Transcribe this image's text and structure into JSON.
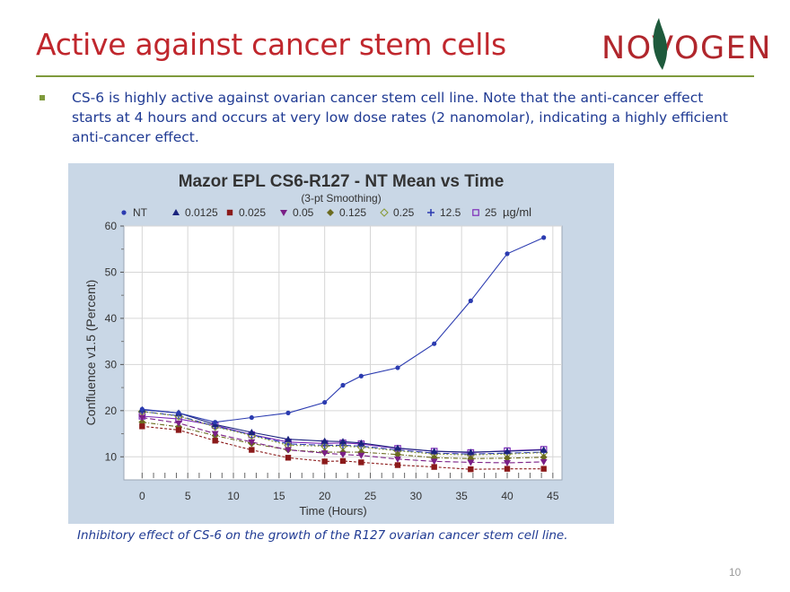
{
  "slide": {
    "title": "Active against cancer stem cells",
    "logo_text": "NOVOGEN",
    "bullet": "CS-6 is highly active against ovarian cancer stem cell line. Note that the anti-cancer effect starts at 4 hours and occurs at very low dose rates (2 nanomolar), indicating a highly efficient anti-cancer effect.",
    "caption": "Inhibitory effect of CS-6 on the growth of the R127 ovarian cancer stem cell line.",
    "page_number": "10",
    "colors": {
      "title": "#c0272d",
      "rule": "#7f9a3c",
      "text": "#1f3a93",
      "logo_leaf": "#1e5a3c"
    }
  },
  "chart_data": {
    "type": "line",
    "title": "Mazor EPL CS6-R127 - NT Mean vs Time",
    "subtitle": "(3-pt Smoothing)",
    "xlabel": "Time (Hours)",
    "ylabel": "Confluence v1.5 (Percent)",
    "unit_label": "µg/ml",
    "xlim": [
      -2,
      46
    ],
    "ylim": [
      5,
      60
    ],
    "x_ticks": [
      "0",
      "5",
      "10",
      "15",
      "20",
      "25",
      "30",
      "35",
      "40",
      "45"
    ],
    "y_ticks": [
      "10",
      "20",
      "30",
      "40",
      "50",
      "60"
    ],
    "grid": true,
    "legend_position": "top",
    "x": [
      0,
      4,
      8,
      12,
      16,
      20,
      22,
      24,
      28,
      32,
      36,
      40,
      44
    ],
    "series": [
      {
        "name": "NT",
        "marker": "circle",
        "color": "#2b3bb0",
        "dash": "",
        "values": [
          20.3,
          19.5,
          17.5,
          18.5,
          19.5,
          21.8,
          25.5,
          27.5,
          29.3,
          34.5,
          43.8,
          54.0,
          57.5
        ]
      },
      {
        "name": "0.0125",
        "marker": "triangle-up",
        "color": "#1a237e",
        "dash": "",
        "values": [
          20.2,
          19.5,
          17.0,
          15.3,
          13.8,
          13.4,
          13.3,
          13.0,
          11.9,
          11.2,
          11.0,
          11.2,
          11.5
        ]
      },
      {
        "name": "0.025",
        "marker": "square",
        "color": "#8b1a1a",
        "dash": "3,2",
        "values": [
          16.6,
          15.8,
          13.5,
          11.5,
          9.8,
          9.0,
          9.1,
          8.8,
          8.2,
          7.8,
          7.3,
          7.4,
          7.4
        ]
      },
      {
        "name": "0.05",
        "marker": "triangle-down",
        "color": "#7a1f86",
        "dash": "6,3",
        "values": [
          18.5,
          17.3,
          15.0,
          13.2,
          11.5,
          10.8,
          10.5,
          10.3,
          9.5,
          9.0,
          8.8,
          8.7,
          8.9
        ]
      },
      {
        "name": "0.125",
        "marker": "diamond",
        "color": "#6b6b1f",
        "dash": "5,2,1,2",
        "values": [
          17.5,
          16.5,
          14.6,
          12.9,
          11.5,
          11.0,
          11.0,
          11.0,
          10.5,
          9.8,
          9.6,
          9.7,
          9.9
        ]
      },
      {
        "name": "0.25",
        "marker": "diamond-open",
        "color": "#8a9a3a",
        "dash": "2,2",
        "values": [
          19.8,
          18.8,
          16.5,
          14.6,
          12.5,
          12.3,
          12.3,
          12.1,
          11.3,
          10.6,
          10.4,
          10.6,
          10.9
        ]
      },
      {
        "name": "12.5",
        "marker": "plus",
        "color": "#2a3ab0",
        "dash": "7,3",
        "values": [
          19.8,
          18.9,
          16.6,
          14.8,
          12.8,
          12.5,
          12.5,
          12.3,
          11.5,
          10.8,
          10.6,
          10.8,
          11.0
        ]
      },
      {
        "name": "25",
        "marker": "square-open",
        "color": "#7c2ab8",
        "dash": "",
        "values": [
          18.8,
          18.2,
          16.8,
          14.8,
          13.2,
          12.9,
          13.0,
          12.8,
          11.8,
          11.2,
          10.9,
          11.3,
          11.6
        ]
      }
    ]
  }
}
